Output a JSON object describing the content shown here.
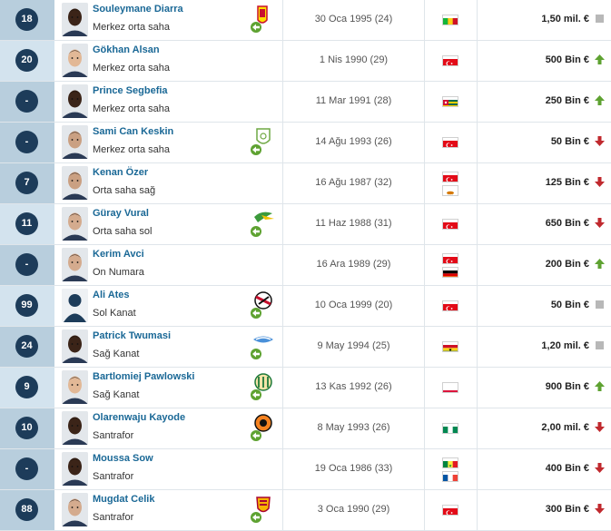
{
  "players": [
    {
      "number": "18",
      "name": "Souleymane Diarra",
      "position": "Merkez orta saha",
      "birth": "30 Oca 1995 (24)",
      "flags": [
        "mali"
      ],
      "value": "1,50 mil. €",
      "trend": "same",
      "club": "lens",
      "skin": "#3b2418"
    },
    {
      "number": "20",
      "name": "Gökhan Alsan",
      "position": "Merkez orta saha",
      "birth": "1 Nis 1990 (29)",
      "flags": [
        "turkey"
      ],
      "value": "500 Bin €",
      "trend": "up",
      "club": "",
      "skin": "#e2b896"
    },
    {
      "number": "-",
      "name": "Prince Segbefia",
      "position": "Merkez orta saha",
      "birth": "11 Mar 1991 (28)",
      "flags": [
        "togo"
      ],
      "value": "250 Bin €",
      "trend": "up",
      "club": "",
      "skin": "#3b2418"
    },
    {
      "number": "-",
      "name": "Sami Can Keskin",
      "position": "Merkez orta saha",
      "birth": "14 Ağu 1993 (26)",
      "flags": [
        "turkey"
      ],
      "value": "50 Bin €",
      "trend": "down",
      "club": "green-shield",
      "skin": "#caa082"
    },
    {
      "number": "7",
      "name": "Kenan Özer",
      "position": "Orta saha sağ",
      "birth": "16 Ağu 1987 (32)",
      "flags": [
        "turkey",
        "cyprus"
      ],
      "value": "125 Bin €",
      "trend": "down",
      "club": "",
      "skin": "#caa082"
    },
    {
      "number": "11",
      "name": "Güray Vural",
      "position": "Orta saha sol",
      "birth": "11 Haz 1988 (31)",
      "flags": [
        "turkey"
      ],
      "value": "650 Bin €",
      "trend": "down",
      "club": "green-bird",
      "skin": "#d4ab8e"
    },
    {
      "number": "-",
      "name": "Kerim Avci",
      "position": "On Numara",
      "birth": "16 Ara 1989 (29)",
      "flags": [
        "turkey",
        "germany"
      ],
      "value": "200 Bin €",
      "trend": "up",
      "club": "",
      "skin": "#d4ab8e"
    },
    {
      "number": "99",
      "name": "Ali Ates",
      "position": "Sol Kanat",
      "birth": "10 Oca 1999 (20)",
      "flags": [
        "turkey"
      ],
      "value": "50 Bin €",
      "trend": "same",
      "club": "red-black",
      "skin": "silhouette"
    },
    {
      "number": "24",
      "name": "Patrick Twumasi",
      "position": "Sağ Kanat",
      "birth": "9 May 1994 (25)",
      "flags": [
        "ghana"
      ],
      "value": "1,20 mil. €",
      "trend": "same",
      "club": "blue-white",
      "skin": "#3b2418"
    },
    {
      "number": "9",
      "name": "Bartlomiej Pawlowski",
      "position": "Sağ Kanat",
      "birth": "13 Kas 1992 (26)",
      "flags": [
        "poland"
      ],
      "value": "900 Bin €",
      "trend": "up",
      "club": "green-yellow",
      "skin": "#e2b896"
    },
    {
      "number": "10",
      "name": "Olarenwaju Kayode",
      "position": "Santrafor",
      "birth": "8 May 1993 (26)",
      "flags": [
        "nigeria"
      ],
      "value": "2,00 mil. €",
      "trend": "down",
      "club": "orange-black",
      "skin": "#3b2418"
    },
    {
      "number": "-",
      "name": "Moussa Sow",
      "position": "Santrafor",
      "birth": "19 Oca 1986 (33)",
      "flags": [
        "senegal",
        "france"
      ],
      "value": "400 Bin €",
      "trend": "down",
      "club": "",
      "skin": "#3b2418"
    },
    {
      "number": "88",
      "name": "Mugdat Celik",
      "position": "Santrafor",
      "birth": "3 Oca 1990 (29)",
      "flags": [
        "turkey"
      ],
      "value": "300 Bin €",
      "trend": "down",
      "club": "galatasaray",
      "skin": "#d4ab8e"
    }
  ],
  "colors": {
    "accent": "#1a6896",
    "number_badge": "#1d3c5a",
    "trend_up": "#5ea231",
    "trend_down": "#c0292e",
    "trend_same": "#b8b8b8"
  }
}
